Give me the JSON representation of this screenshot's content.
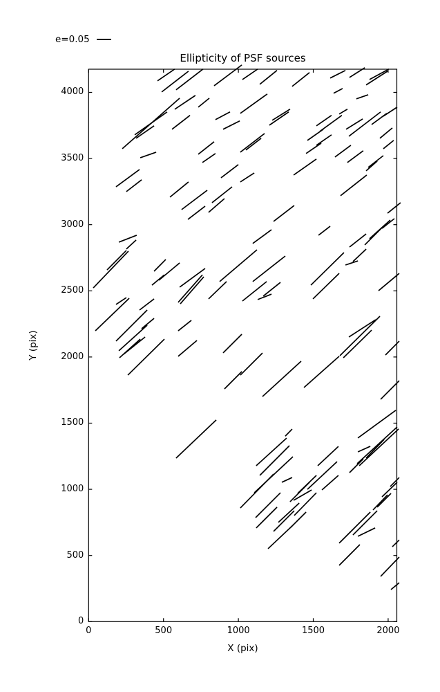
{
  "figure": {
    "title": "Ellipticity of PSF sources",
    "xlabel": "X (pix)",
    "ylabel": "Y (pix)",
    "legend_label": "e=0.05",
    "background_color": "#ffffff",
    "line_color": "#000000"
  },
  "chart_data": {
    "type": "scatter",
    "subtype": "ellipticity-whisker-segments",
    "title": "Ellipticity of PSF sources",
    "xlabel": "X (pix)",
    "ylabel": "Y (pix)",
    "xlim": [
      0,
      2058
    ],
    "ylim": [
      0,
      4175
    ],
    "xticks": [
      0,
      500,
      1000,
      1500,
      2000
    ],
    "yticks": [
      0,
      500,
      1000,
      1500,
      2000,
      2500,
      3000,
      3500,
      4000
    ],
    "grid": false,
    "tick_direction": "in",
    "ticks_on_all_sides": true,
    "legend": {
      "label": "e=0.05",
      "marker": "horizontal-line",
      "position": "above-axes-top-left",
      "frame": false
    },
    "series_color": "#000000",
    "segments_format": [
      "x1",
      "y1",
      "x2",
      "y2"
    ],
    "segments": [
      [
        460,
        4087,
        575,
        4176
      ],
      [
        488,
        4003,
        667,
        4160
      ],
      [
        584,
        4019,
        764,
        4176
      ],
      [
        838,
        4050,
        1023,
        4207
      ],
      [
        575,
        3872,
        713,
        3977
      ],
      [
        732,
        3888,
        806,
        3956
      ],
      [
        317,
        3653,
        437,
        3747
      ],
      [
        225,
        3574,
        608,
        3956
      ],
      [
        308,
        3679,
        524,
        3852
      ],
      [
        557,
        3721,
        677,
        3826
      ],
      [
        847,
        3794,
        944,
        3852
      ],
      [
        898,
        3721,
        1009,
        3784
      ],
      [
        732,
        3532,
        838,
        3627
      ],
      [
        760,
        3470,
        847,
        3538
      ],
      [
        183,
        3286,
        340,
        3417
      ],
      [
        252,
        3250,
        354,
        3339
      ],
      [
        345,
        3506,
        451,
        3548
      ],
      [
        543,
        3208,
        667,
        3323
      ],
      [
        621,
        3114,
        792,
        3260
      ],
      [
        663,
        3040,
        778,
        3140
      ],
      [
        801,
        3093,
        907,
        3197
      ],
      [
        824,
        3166,
        958,
        3286
      ],
      [
        884,
        3354,
        1000,
        3454
      ],
      [
        202,
        2868,
        321,
        2920
      ],
      [
        252,
        2816,
        317,
        2884
      ],
      [
        1027,
        4097,
        1129,
        4176
      ],
      [
        1143,
        4061,
        1258,
        4166
      ],
      [
        1359,
        4045,
        1475,
        4150
      ],
      [
        1613,
        4108,
        1715,
        4166
      ],
      [
        1742,
        4113,
        1844,
        4186
      ],
      [
        1853,
        4056,
        1996,
        4160
      ],
      [
        1876,
        4097,
        2005,
        4176
      ],
      [
        1636,
        3993,
        1696,
        4029
      ],
      [
        1788,
        3951,
        1867,
        3982
      ],
      [
        1013,
        3841,
        1193,
        3988
      ],
      [
        1207,
        3752,
        1336,
        3852
      ],
      [
        1226,
        3789,
        1345,
        3873
      ],
      [
        1013,
        3548,
        1175,
        3689
      ],
      [
        1050,
        3564,
        1152,
        3653
      ],
      [
        1521,
        3747,
        1622,
        3826
      ],
      [
        1544,
        3705,
        1691,
        3826
      ],
      [
        1673,
        3836,
        1728,
        3873
      ],
      [
        1461,
        3637,
        1567,
        3721
      ],
      [
        1521,
        3600,
        1622,
        3679
      ],
      [
        1719,
        3721,
        1830,
        3799
      ],
      [
        1738,
        3668,
        1950,
        3852
      ],
      [
        1890,
        3757,
        1991,
        3841
      ],
      [
        1968,
        3820,
        2060,
        3888
      ],
      [
        1945,
        3653,
        2028,
        3731
      ],
      [
        1968,
        3574,
        2037,
        3637
      ],
      [
        1645,
        3511,
        1751,
        3600
      ],
      [
        1728,
        3470,
        1834,
        3559
      ],
      [
        1452,
        3538,
        1553,
        3616
      ],
      [
        1369,
        3375,
        1521,
        3496
      ],
      [
        1013,
        3323,
        1106,
        3391
      ],
      [
        1682,
        3219,
        1857,
        3375
      ],
      [
        1853,
        3407,
        1927,
        3480
      ],
      [
        1867,
        3433,
        1968,
        3522
      ],
      [
        1096,
        2858,
        1221,
        2962
      ],
      [
        1235,
        3025,
        1373,
        3145
      ],
      [
        1535,
        2920,
        1613,
        2988
      ],
      [
        1742,
        2831,
        1853,
        2930
      ],
      [
        1844,
        2847,
        1964,
        2983
      ],
      [
        1876,
        2894,
        2014,
        3035
      ],
      [
        1959,
        2972,
        2042,
        3046
      ],
      [
        1996,
        3087,
        2083,
        3166
      ],
      [
        31,
        2522,
        266,
        2800
      ],
      [
        123,
        2658,
        252,
        2805
      ],
      [
        45,
        2198,
        271,
        2444
      ],
      [
        183,
        2397,
        252,
        2449
      ],
      [
        183,
        2120,
        391,
        2355
      ],
      [
        202,
        2047,
        391,
        2240
      ],
      [
        206,
        1994,
        345,
        2135
      ],
      [
        234,
        2021,
        377,
        2151
      ],
      [
        262,
        1863,
        506,
        2135
      ],
      [
        340,
        2355,
        437,
        2439
      ],
      [
        354,
        2214,
        437,
        2292
      ],
      [
        423,
        2543,
        506,
        2621
      ],
      [
        437,
        2648,
        515,
        2737
      ],
      [
        469,
        2580,
        608,
        2711
      ],
      [
        608,
        2528,
        778,
        2669
      ],
      [
        598,
        2413,
        760,
        2621
      ],
      [
        612,
        2402,
        769,
        2606
      ],
      [
        598,
        2198,
        686,
        2277
      ],
      [
        598,
        2005,
        723,
        2125
      ],
      [
        801,
        2439,
        921,
        2570
      ],
      [
        875,
        2570,
        1124,
        2810
      ],
      [
        898,
        2031,
        1023,
        2172
      ],
      [
        907,
        1759,
        1023,
        1890
      ],
      [
        584,
        1236,
        852,
        1524
      ],
      [
        1096,
        2570,
        1313,
        2763
      ],
      [
        1027,
        2423,
        1189,
        2570
      ],
      [
        1166,
        2460,
        1281,
        2564
      ],
      [
        1129,
        2434,
        1221,
        2475
      ],
      [
        1484,
        2543,
        1705,
        2789
      ],
      [
        1498,
        2439,
        1673,
        2632
      ],
      [
        1715,
        2695,
        1798,
        2726
      ],
      [
        1765,
        2721,
        1853,
        2815
      ],
      [
        1936,
        2501,
        2074,
        2632
      ],
      [
        1013,
        1863,
        1161,
        2030
      ],
      [
        1161,
        1701,
        1419,
        1968
      ],
      [
        1438,
        1769,
        1673,
        2005
      ],
      [
        1678,
        2010,
        1945,
        2308
      ],
      [
        1701,
        1994,
        1890,
        2203
      ],
      [
        1738,
        2151,
        1917,
        2282
      ],
      [
        1982,
        2015,
        2074,
        2120
      ],
      [
        1950,
        1680,
        2074,
        1821
      ],
      [
        1313,
        1402,
        1359,
        1455
      ],
      [
        1119,
        1178,
        1322,
        1387
      ],
      [
        1143,
        1105,
        1341,
        1330
      ],
      [
        1290,
        1053,
        1359,
        1089
      ],
      [
        1013,
        859,
        1235,
        1115
      ],
      [
        1106,
        974,
        1364,
        1246
      ],
      [
        1115,
        786,
        1281,
        974
      ],
      [
        1119,
        708,
        1258,
        865
      ],
      [
        1235,
        682,
        1373,
        838
      ],
      [
        1198,
        551,
        1359,
        723
      ],
      [
        1267,
        750,
        1406,
        896
      ],
      [
        1345,
        906,
        1475,
        1053
      ],
      [
        1350,
        713,
        1452,
        828
      ],
      [
        1373,
        802,
        1521,
        974
      ],
      [
        1369,
        917,
        1489,
        995
      ],
      [
        1396,
        969,
        1521,
        1105
      ],
      [
        1461,
        1000,
        1659,
        1209
      ],
      [
        1530,
        1178,
        1668,
        1324
      ],
      [
        1558,
        995,
        1668,
        1105
      ],
      [
        1742,
        1126,
        1834,
        1230
      ],
      [
        1798,
        1283,
        1881,
        1325
      ],
      [
        1853,
        1236,
        1973,
        1377
      ],
      [
        1798,
        1388,
        2051,
        1597
      ],
      [
        1793,
        1194,
        2060,
        1471
      ],
      [
        1807,
        1178,
        2070,
        1456
      ],
      [
        1673,
        593,
        1881,
        828
      ],
      [
        1765,
        655,
        1927,
        838
      ],
      [
        1798,
        645,
        1913,
        708
      ],
      [
        1899,
        844,
        1996,
        958
      ],
      [
        1927,
        865,
        2019,
        969
      ],
      [
        1959,
        943,
        2060,
        1053
      ],
      [
        2014,
        1021,
        2074,
        1089
      ],
      [
        1673,
        425,
        1811,
        582
      ],
      [
        1950,
        342,
        2074,
        488
      ],
      [
        2019,
        242,
        2074,
        294
      ],
      [
        2028,
        566,
        2074,
        617
      ]
    ]
  }
}
